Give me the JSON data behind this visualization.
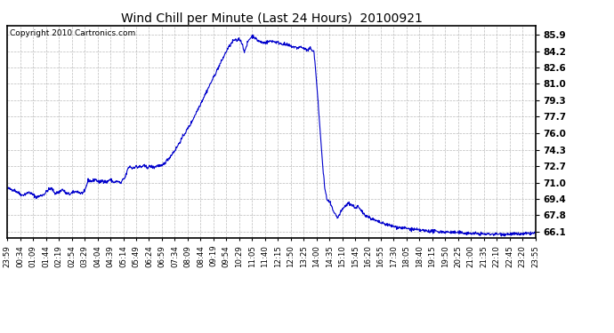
{
  "title": "Wind Chill per Minute (Last 24 Hours)  20100921",
  "copyright": "Copyright 2010 Cartronics.com",
  "line_color": "#0000cc",
  "background_color": "#ffffff",
  "grid_color": "#aaaaaa",
  "yticks": [
    66.1,
    67.8,
    69.4,
    71.0,
    72.7,
    74.3,
    76.0,
    77.7,
    79.3,
    81.0,
    82.6,
    84.2,
    85.9
  ],
  "ymin": 65.5,
  "ymax": 86.8,
  "xtick_labels": [
    "23:59",
    "00:34",
    "01:09",
    "01:44",
    "02:19",
    "02:54",
    "03:29",
    "04:04",
    "04:39",
    "05:14",
    "05:49",
    "06:24",
    "06:59",
    "07:34",
    "08:09",
    "08:44",
    "09:19",
    "09:54",
    "10:29",
    "11:05",
    "11:40",
    "12:15",
    "12:50",
    "13:25",
    "14:00",
    "14:35",
    "15:10",
    "15:45",
    "16:20",
    "16:55",
    "17:30",
    "18:05",
    "18:40",
    "19:15",
    "19:50",
    "20:25",
    "21:00",
    "21:35",
    "22:10",
    "22:45",
    "23:20",
    "23:55"
  ],
  "num_points": 1440,
  "key_values": {
    "0": 70.5,
    "20": 70.3,
    "40": 69.8,
    "60": 70.1,
    "80": 69.6,
    "100": 69.9,
    "110": 70.3,
    "120": 70.5,
    "130": 70.0,
    "140": 70.1,
    "150": 70.4,
    "160": 70.0,
    "170": 69.9,
    "180": 70.1,
    "190": 70.2,
    "200": 70.0,
    "210": 70.1,
    "220": 71.3,
    "230": 71.2,
    "240": 71.4,
    "250": 71.1,
    "260": 71.3,
    "270": 71.1,
    "280": 71.4,
    "290": 71.1,
    "300": 71.2,
    "310": 71.0,
    "315": 71.4,
    "320": 71.5,
    "330": 72.6,
    "335": 72.7,
    "340": 72.5,
    "345": 72.6,
    "350": 72.7,
    "355": 72.6,
    "360": 72.7,
    "365": 72.6,
    "370": 72.8,
    "380": 72.6,
    "390": 72.7,
    "400": 72.6,
    "410": 72.8,
    "420": 72.7,
    "440": 73.5,
    "460": 74.5,
    "480": 75.8,
    "500": 77.0,
    "520": 78.5,
    "540": 80.0,
    "560": 81.5,
    "580": 83.0,
    "600": 84.5,
    "610": 85.0,
    "615": 85.3,
    "620": 85.4,
    "625": 85.3,
    "630": 85.5,
    "635": 85.4,
    "640": 85.0,
    "645": 84.3,
    "650": 84.5,
    "655": 85.2,
    "660": 85.5,
    "665": 85.7,
    "670": 85.8,
    "675": 85.6,
    "680": 85.4,
    "690": 85.2,
    "700": 85.1,
    "710": 85.2,
    "720": 85.3,
    "730": 85.2,
    "740": 85.1,
    "750": 85.0,
    "760": 84.9,
    "770": 84.8,
    "780": 84.7,
    "790": 84.6,
    "800": 84.7,
    "810": 84.5,
    "820": 84.3,
    "825": 84.6,
    "830": 84.4,
    "835": 84.3,
    "840": 82.5,
    "845": 80.0,
    "850": 77.5,
    "855": 75.0,
    "860": 72.5,
    "865": 70.5,
    "870": 69.5,
    "875": 69.2,
    "880": 69.0,
    "885": 68.5,
    "890": 68.0,
    "895": 67.8,
    "900": 67.5,
    "910": 68.2,
    "920": 68.7,
    "930": 69.0,
    "940": 68.8,
    "950": 68.5,
    "955": 68.7,
    "960": 68.4,
    "965": 68.2,
    "970": 68.0,
    "980": 67.7,
    "990": 67.5,
    "1000": 67.3,
    "1020": 67.0,
    "1040": 66.8,
    "1060": 66.6,
    "1080": 66.5,
    "1100": 66.4,
    "1120": 66.3,
    "1150": 66.2,
    "1200": 66.1,
    "1250": 66.0,
    "1300": 65.9,
    "1350": 65.9,
    "1400": 65.9,
    "1439": 66.0
  }
}
